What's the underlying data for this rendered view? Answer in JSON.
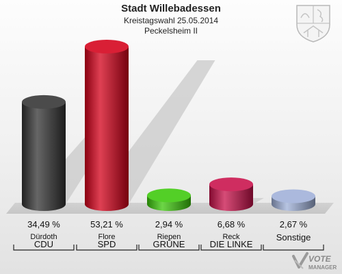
{
  "header": {
    "title": "Stadt Willebadessen",
    "subtitle": "Kreistagswahl 25.05.2014",
    "district": "Peckelsheim II"
  },
  "chart_data": {
    "type": "bar",
    "categories": [
      "CDU",
      "SPD",
      "GRÜNE",
      "DIE LINKE",
      "Sonstige"
    ],
    "candidates": [
      "Dürdoth",
      "Flore",
      "Riepen",
      "Reck",
      ""
    ],
    "values": [
      34.49,
      53.21,
      2.94,
      6.68,
      2.67
    ],
    "value_labels": [
      "34,49 %",
      "53,21 %",
      "2,94 %",
      "6,68 %",
      "2,67 %"
    ],
    "colors": [
      "#333333",
      "#d4001a",
      "#3cc80a",
      "#c8104a",
      "#9fb0d8"
    ],
    "ylim": [
      0,
      53.21
    ],
    "grid": false,
    "legend": "none"
  },
  "watermark": {
    "line1": "VOTE",
    "line2": "MANAGER"
  },
  "icons": {
    "crest": "nrw-coat-of-arms-icon",
    "logo": "votemanager-logo-icon"
  }
}
